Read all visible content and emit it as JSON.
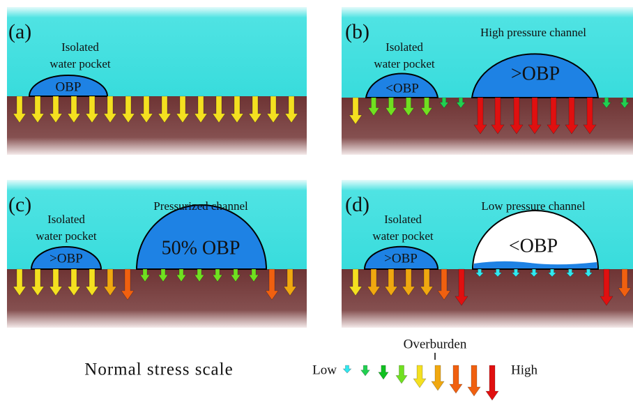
{
  "panels": [
    {
      "label": "(a)",
      "pocket_label": [
        "Isolated",
        "water pocket"
      ],
      "pocket_text": "OBP"
    },
    {
      "label": "(b)",
      "pocket_label": [
        "Isolated",
        "water pocket"
      ],
      "pocket_text": "<OBP",
      "channel_title": "High pressure channel",
      "channel_text": ">OBP"
    },
    {
      "label": "(c)",
      "pocket_label": [
        "Isolated",
        "water pocket"
      ],
      "pocket_text": ">OBP",
      "channel_title": "Pressurized channel",
      "channel_text": "50% OBP"
    },
    {
      "label": "(d)",
      "pocket_label": [
        "Isolated",
        "water pocket"
      ],
      "pocket_text": ">OBP",
      "channel_title": "Low pressure channel",
      "channel_text": "<OBP"
    }
  ],
  "legend": {
    "title": "Normal stress scale",
    "low": "Low",
    "reference": "Overburden",
    "high": "High"
  }
}
